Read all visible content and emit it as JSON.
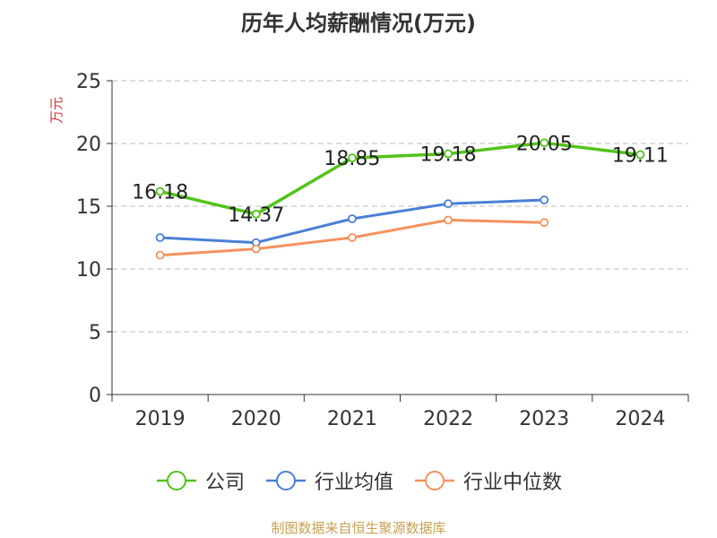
{
  "chart_data": {
    "type": "line",
    "title": "历年人均薪酬情况(万元)",
    "ylabel": "万元",
    "xlabel": "",
    "categories": [
      "2019",
      "2020",
      "2021",
      "2022",
      "2023",
      "2024"
    ],
    "ylim": [
      0,
      25
    ],
    "yticks": [
      "0",
      "5",
      "10",
      "15",
      "20",
      "25"
    ],
    "grid": true,
    "legend_position": "bottom",
    "series": [
      {
        "name": "公司",
        "color": "#52c41a",
        "values": [
          16.18,
          14.37,
          18.85,
          19.18,
          20.05,
          19.11
        ],
        "labels": [
          "16.18",
          "14.37",
          "18.85",
          "19.18",
          "20.05",
          "19.11"
        ]
      },
      {
        "name": "行业均值",
        "color": "#4a7fd6",
        "values": [
          12.5,
          12.1,
          14.0,
          15.2,
          15.5,
          null
        ]
      },
      {
        "name": "行业中位数",
        "color": "#f5925e",
        "values": [
          11.1,
          11.6,
          12.5,
          13.9,
          13.7,
          null
        ]
      }
    ]
  },
  "source": "制图数据来自恒生聚源数据库"
}
